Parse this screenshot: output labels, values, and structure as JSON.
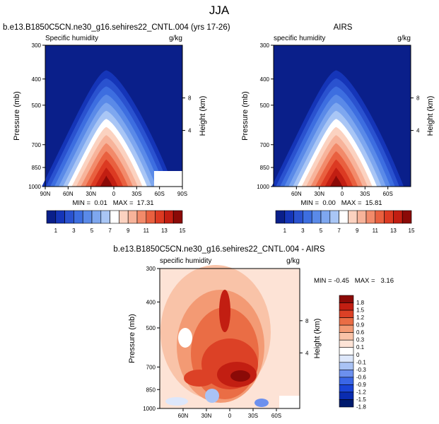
{
  "title": "JJA",
  "colors": {
    "abs": [
      "#0a1f8a",
      "#1535b8",
      "#2a52cf",
      "#3d6ee0",
      "#5a8ae8",
      "#7ea7ef",
      "#a9c6f5",
      "#ffffff",
      "#fbd2c0",
      "#f7b39a",
      "#f28a6a",
      "#e9603f",
      "#dc3a22",
      "#c21e12",
      "#8b0a07"
    ],
    "diff": [
      "#001a6e",
      "#0a2cb0",
      "#1a44d6",
      "#3a66e6",
      "#6c90ee",
      "#a9c2f4",
      "#dde7fb",
      "#ffffff",
      "#fde3d6",
      "#f9c3a8",
      "#f39a74",
      "#ea6d45",
      "#dc4126",
      "#c21e12",
      "#8b0a07"
    ]
  },
  "chart_data": [
    {
      "type": "heatmap",
      "title": "b.e13.B1850C5CN.ne30_g16.sehires22_CNTL.004 (yrs 17-26)",
      "left_label": "Specific humidity",
      "right_label": "g/kg",
      "ylabel": "Pressure (mb)",
      "y2label": "Height (km)",
      "y_ticks": [
        "300",
        "400",
        "500",
        "700",
        "850",
        "1000"
      ],
      "y2_ticks": [
        "8",
        "4"
      ],
      "x_ticks": [
        "90N",
        "60N",
        "30N",
        "0",
        "30S",
        "60S",
        "90S"
      ],
      "stats": "MIN =  0.01   MAX =  17.31",
      "peak_lat": 10,
      "colorbar": {
        "labels": [
          "1",
          "3",
          "5",
          "7",
          "9",
          "11",
          "13",
          "15"
        ]
      }
    },
    {
      "type": "heatmap",
      "title": "AIRS",
      "left_label": "specific humidity",
      "right_label": "g/kg",
      "ylabel": "Pressure (mb)",
      "y2label": "Height (km)",
      "y_ticks": [
        "300",
        "400",
        "500",
        "700",
        "850",
        "1000"
      ],
      "y2_ticks": [
        "8",
        "4"
      ],
      "x_ticks": [
        "60N",
        "30N",
        "0",
        "30S",
        "60S"
      ],
      "stats": "MIN =  0.00   MAX =  15.81",
      "peak_lat": 8,
      "colorbar": {
        "labels": [
          "1",
          "3",
          "5",
          "7",
          "9",
          "11",
          "13",
          "15"
        ]
      }
    },
    {
      "type": "heatmap",
      "title": "b.e13.B1850C5CN.ne30_g16.sehires22_CNTL.004 - AIRS",
      "left_label": "specific humidity",
      "right_label": "g/kg",
      "ylabel": "Pressure (mb)",
      "y2label": "Height (km)",
      "y_ticks": [
        "300",
        "400",
        "500",
        "700",
        "850",
        "1000"
      ],
      "y2_ticks": [
        "8",
        "4"
      ],
      "x_ticks": [
        "60N",
        "30N",
        "0",
        "30S",
        "60S"
      ],
      "stats": "MIN = -0.45   MAX =   3.16",
      "colorbar": {
        "labels": [
          "1.8",
          "1.5",
          "1.2",
          "0.9",
          "0.6",
          "0.3",
          "0.1",
          "0",
          "-0.1",
          "-0.3",
          "-0.6",
          "-0.9",
          "-1.2",
          "-1.5",
          "-1.8"
        ]
      }
    }
  ]
}
